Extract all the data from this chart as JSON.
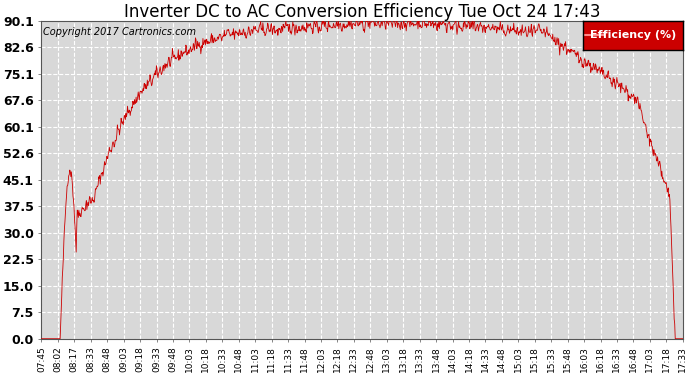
{
  "title": "Inverter DC to AC Conversion Efficiency Tue Oct 24 17:43",
  "copyright_text": "Copyright 2017 Cartronics.com",
  "legend_label": "Efficiency (%)",
  "legend_bg": "#cc0000",
  "legend_fg": "#ffffff",
  "line_color": "#cc0000",
  "bg_color": "#ffffff",
  "plot_bg_color": "#d8d8d8",
  "grid_color": "#ffffff",
  "yticks": [
    0.0,
    7.5,
    15.0,
    22.5,
    30.0,
    37.5,
    45.1,
    52.6,
    60.1,
    67.6,
    75.1,
    82.6,
    90.1
  ],
  "ymin": 0.0,
  "ymax": 90.1,
  "xtick_labels": [
    "07:45",
    "08:02",
    "08:17",
    "08:33",
    "08:48",
    "09:03",
    "09:18",
    "09:33",
    "09:48",
    "10:03",
    "10:18",
    "10:33",
    "10:48",
    "11:03",
    "11:18",
    "11:33",
    "11:48",
    "12:03",
    "12:18",
    "12:33",
    "12:48",
    "13:03",
    "13:18",
    "13:33",
    "13:48",
    "14:03",
    "14:18",
    "14:33",
    "14:48",
    "15:03",
    "15:18",
    "15:33",
    "15:48",
    "16:03",
    "16:18",
    "16:33",
    "16:48",
    "17:03",
    "17:18",
    "17:33"
  ],
  "title_fontsize": 12,
  "copyright_fontsize": 7,
  "ytick_fontsize": 9,
  "xtick_fontsize": 6.5,
  "legend_fontsize": 8
}
